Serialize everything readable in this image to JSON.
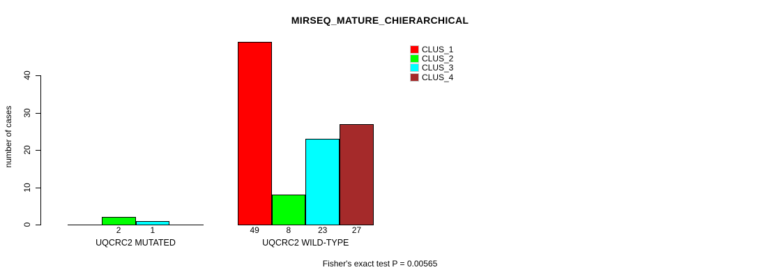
{
  "chart_data": {
    "type": "bar",
    "title": "MIRSEQ_MATURE_CHIERARCHICAL",
    "ylabel": "number of cases",
    "xlabel": "",
    "footer_annotation": "Fisher's exact test P = 0.00565",
    "categories": [
      "UQCRC2 MUTATED",
      "UQCRC2 WILD-TYPE"
    ],
    "series": [
      {
        "name": "CLUS_1",
        "color": "#FF0000",
        "values": [
          0,
          49
        ]
      },
      {
        "name": "CLUS_2",
        "color": "#00FF00",
        "values": [
          2,
          8
        ]
      },
      {
        "name": "CLUS_3",
        "color": "#00FFFF",
        "values": [
          1,
          23
        ]
      },
      {
        "name": "CLUS_4",
        "color": "#A52A2A",
        "values": [
          0,
          27
        ]
      }
    ],
    "bar_value_labels": [
      [
        "",
        "2",
        "1",
        ""
      ],
      [
        "49",
        "8",
        "23",
        "27"
      ]
    ],
    "yticks": [
      0,
      10,
      20,
      30,
      40
    ],
    "ylim": [
      0,
      49
    ],
    "grid": false,
    "legend_position": "top-right",
    "axis_color": "#000000",
    "background": "#FFFFFF"
  }
}
